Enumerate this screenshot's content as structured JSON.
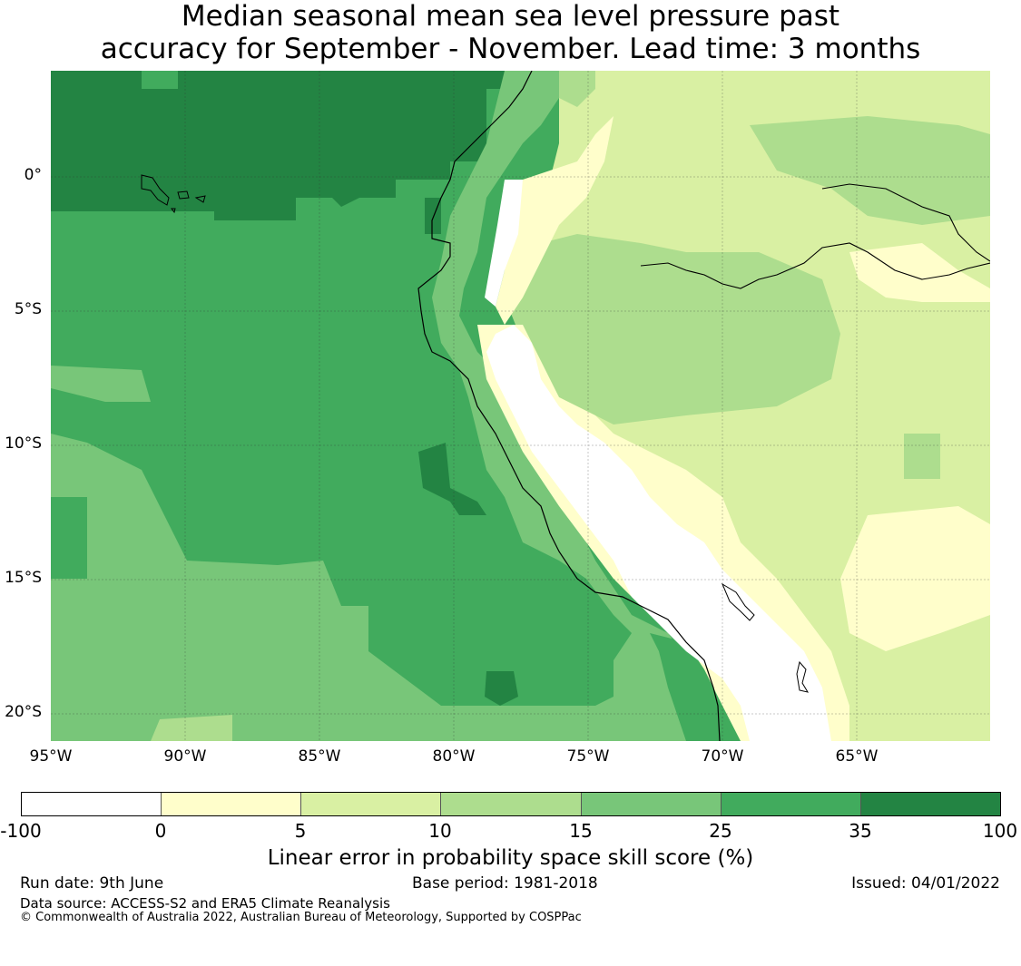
{
  "title": {
    "line1": "Median seasonal mean sea level pressure past",
    "line2": "accuracy for September - November. Lead time: 3 months"
  },
  "map": {
    "longitude_labels": [
      "95°W",
      "90°W",
      "85°W",
      "80°W",
      "75°W",
      "70°W",
      "65°W"
    ],
    "latitude_labels": [
      "0°",
      "5°S",
      "10°S",
      "15°S",
      "20°S"
    ],
    "gridlines": true,
    "layer": "skill score raster over west coast of South America (Peru / Ecuador)"
  },
  "colorbar": {
    "ticks": [
      "-100",
      "0",
      "5",
      "10",
      "15",
      "25",
      "35",
      "100"
    ],
    "bins": [
      {
        "range": "-100 to 0",
        "color": "#ffffff"
      },
      {
        "range": "0 to 5",
        "color": "#fffecb"
      },
      {
        "range": "5 to 10",
        "color": "#d9f0a3"
      },
      {
        "range": "10 to 15",
        "color": "#addd8e"
      },
      {
        "range": "15 to 25",
        "color": "#78c679"
      },
      {
        "range": "25 to 35",
        "color": "#41ab5d"
      },
      {
        "range": "35 to 100",
        "color": "#238443"
      }
    ],
    "label": "Linear error in probability space skill score (%)"
  },
  "footer": {
    "run_date": "Run date: 9th June",
    "base_period": "Base period: 1981-2018",
    "issued": "Issued: 04/01/2022",
    "data_source": "Data source: ACCESS-S2 and ERA5 Climate Reanalysis",
    "copyright": "© Commonwealth of Australia 2022, Australian Bureau of Meteorology, Supported by COSPPac"
  }
}
